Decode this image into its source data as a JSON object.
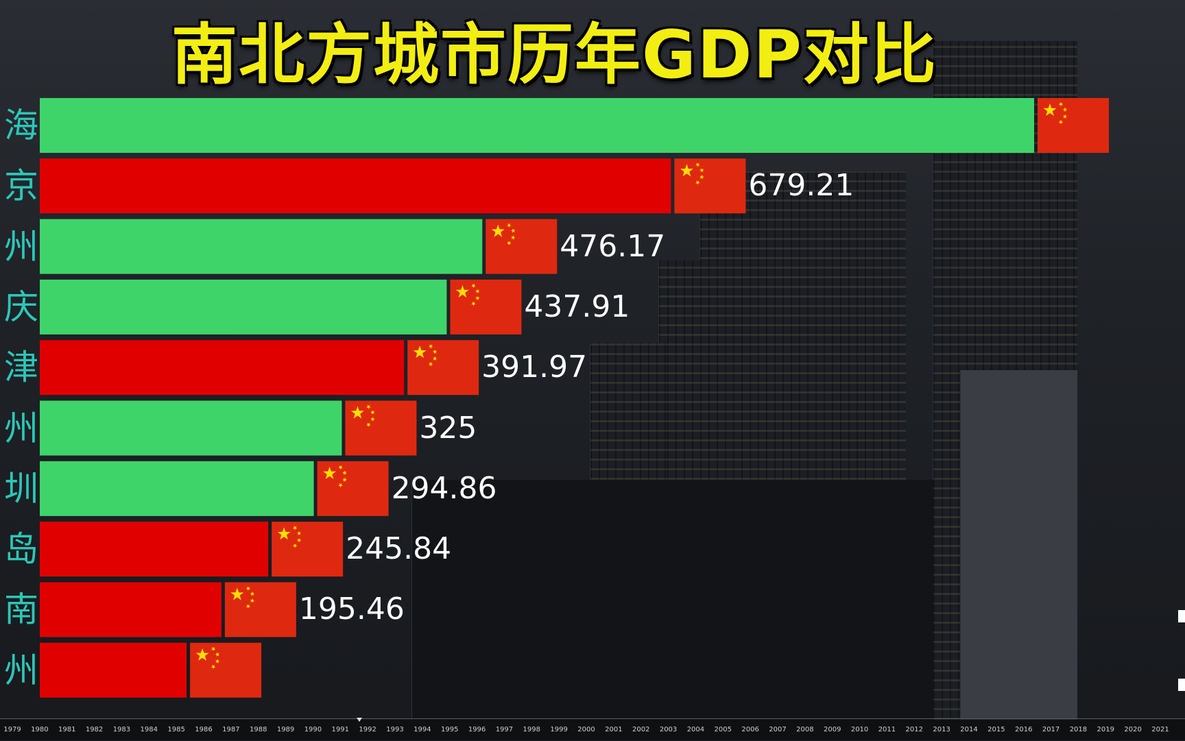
{
  "title": "南北方城市历年GDP对比",
  "colors": {
    "south": "#3fd46a",
    "north": "#e00000",
    "flag_red": "#de2910",
    "flag_star": "#ffde00",
    "label_color": "#2cc7b8"
  },
  "icons": {
    "flag": "china-flag-icon"
  },
  "chart_data": {
    "type": "bar",
    "orientation": "horizontal",
    "title": "南北方城市历年GDP对比",
    "categories": [
      "海",
      "京",
      "州",
      "庆",
      "津",
      "州",
      "圳",
      "岛",
      "南",
      "州"
    ],
    "values": [
      1070,
      679.21,
      476.17,
      437.91,
      391.97,
      325,
      294.86,
      245.84,
      195.46,
      158
    ],
    "value_labels": [
      "",
      "679.21",
      "476.17",
      "437.91",
      "391.97",
      "325",
      "294.86",
      "245.84",
      "195.46",
      ""
    ],
    "region": [
      "south",
      "north",
      "south",
      "south",
      "north",
      "south",
      "south",
      "north",
      "north",
      "north"
    ],
    "timeline": [
      "1979",
      "1980",
      "1981",
      "1982",
      "1983",
      "1984",
      "1985",
      "1986",
      "1987",
      "1988",
      "1989",
      "1990",
      "1991",
      "1992",
      "1993",
      "1994",
      "1995",
      "1996",
      "1997",
      "1998",
      "1999",
      "2000",
      "2001",
      "2002",
      "2003",
      "2004",
      "2005",
      "2006",
      "2007",
      "2008",
      "2009",
      "2010",
      "2011",
      "2012",
      "2013",
      "2014",
      "2015",
      "2016",
      "2017",
      "2018",
      "2019",
      "2020",
      "2021"
    ]
  }
}
